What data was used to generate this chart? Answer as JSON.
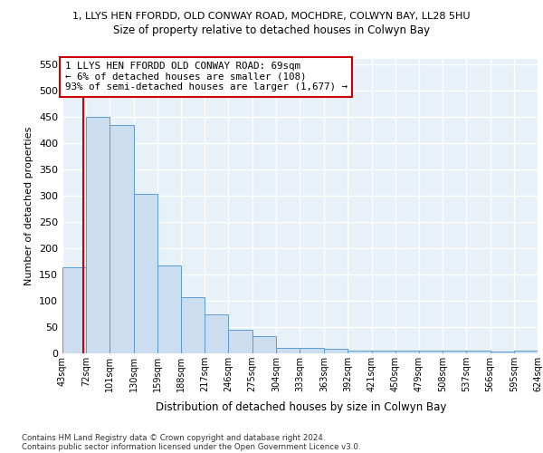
{
  "title_line1": "1, LLYS HEN FFORDD, OLD CONWAY ROAD, MOCHDRE, COLWYN BAY, LL28 5HU",
  "title_line2": "Size of property relative to detached houses in Colwyn Bay",
  "xlabel": "Distribution of detached houses by size in Colwyn Bay",
  "ylabel": "Number of detached properties",
  "footnote1": "Contains HM Land Registry data © Crown copyright and database right 2024.",
  "footnote2": "Contains public sector information licensed under the Open Government Licence v3.0.",
  "annotation_line1": "1 LLYS HEN FFORDD OLD CONWAY ROAD: 69sqm",
  "annotation_line2": "← 6% of detached houses are smaller (108)",
  "annotation_line3": "93% of semi-detached houses are larger (1,677) →",
  "bar_color": "#ccddf0",
  "bar_edge_color": "#5b9bd5",
  "red_line_x": 69,
  "bin_edges": [
    43,
    72,
    101,
    130,
    159,
    188,
    217,
    246,
    275,
    304,
    333,
    363,
    392,
    421,
    450,
    479,
    508,
    537,
    566,
    595,
    624
  ],
  "bin_counts": [
    163,
    450,
    435,
    303,
    167,
    107,
    74,
    45,
    33,
    11,
    11,
    9,
    6,
    5,
    5,
    5,
    5,
    5,
    3,
    5
  ],
  "ylim": [
    0,
    560
  ],
  "yticks": [
    0,
    50,
    100,
    150,
    200,
    250,
    300,
    350,
    400,
    450,
    500,
    550
  ],
  "fig_bg_color": "#ffffff",
  "plot_bg_color": "#e8f0f8",
  "grid_color": "#ffffff",
  "annotation_box_color": "#ffffff",
  "annotation_box_edge": "#cc0000"
}
